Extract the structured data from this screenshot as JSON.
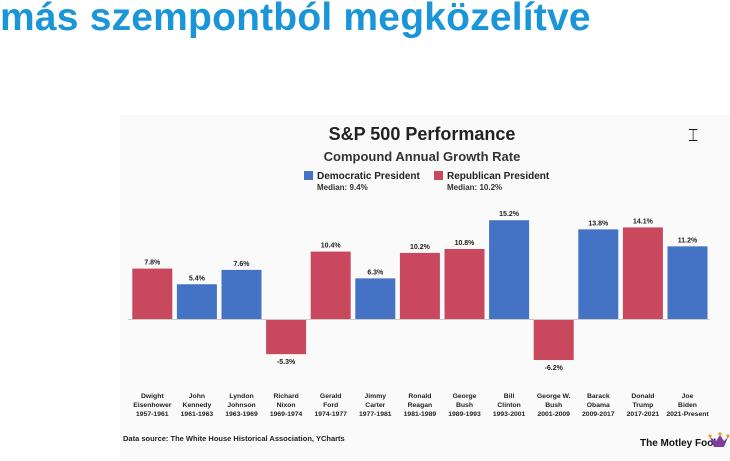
{
  "slide": {
    "heading": "más szempontból megközelítve"
  },
  "chart_data": {
    "type": "bar",
    "title": "S&P 500 Performance",
    "subtitle": "Compound Annual Growth Rate",
    "legend": [
      {
        "name": "Democratic President",
        "median": "Median: 9.4%",
        "color": "#4472c4"
      },
      {
        "name": "Republican President",
        "median": "Median: 10.2%",
        "color": "#c9485e"
      }
    ],
    "categories": [
      {
        "name": "Dwight Eisenhower",
        "line1": "Dwight",
        "line2": "Eisenhower",
        "years": "1957-1961",
        "value": 7.8,
        "label": "7.8%",
        "party": "R"
      },
      {
        "name": "John Kennedy",
        "line1": "John",
        "line2": "Kennedy",
        "years": "1961-1963",
        "value": 5.4,
        "label": "5.4%",
        "party": "D"
      },
      {
        "name": "Lyndon Johnson",
        "line1": "Lyndon",
        "line2": "Johnson",
        "years": "1963-1969",
        "value": 7.6,
        "label": "7.6%",
        "party": "D"
      },
      {
        "name": "Richard Nixon",
        "line1": "Richard",
        "line2": "Nixon",
        "years": "1969-1974",
        "value": -5.3,
        "label": "-5.3%",
        "party": "R"
      },
      {
        "name": "Gerald Ford",
        "line1": "Gerald",
        "line2": "Ford",
        "years": "1974-1977",
        "value": 10.4,
        "label": "10.4%",
        "party": "R"
      },
      {
        "name": "Jimmy Carter",
        "line1": "Jimmy",
        "line2": "Carter",
        "years": "1977-1981",
        "value": 6.3,
        "label": "6.3%",
        "party": "D"
      },
      {
        "name": "Ronald Reagan",
        "line1": "Ronald",
        "line2": "Reagan",
        "years": "1981-1989",
        "value": 10.2,
        "label": "10.2%",
        "party": "R"
      },
      {
        "name": "George Bush",
        "line1": "George",
        "line2": "Bush",
        "years": "1989-1993",
        "value": 10.8,
        "label": "10.8%",
        "party": "R"
      },
      {
        "name": "Bill Clinton",
        "line1": "Bill",
        "line2": "Clinton",
        "years": "1993-2001",
        "value": 15.2,
        "label": "15.2%",
        "party": "D"
      },
      {
        "name": "George W. Bush",
        "line1": "George W.",
        "line2": "Bush",
        "years": "2001-2009",
        "value": -6.2,
        "label": "-6.2%",
        "party": "R"
      },
      {
        "name": "Barack Obama",
        "line1": "Barack",
        "line2": "Obama",
        "years": "2009-2017",
        "value": 13.8,
        "label": "13.8%",
        "party": "D"
      },
      {
        "name": "Donald Trump",
        "line1": "Donald",
        "line2": "Trump",
        "years": "2017-2021",
        "value": 14.1,
        "label": "14.1%",
        "party": "R"
      },
      {
        "name": "Joe Biden",
        "line1": "Joe",
        "line2": "Biden",
        "years": "2021-Present",
        "value": 11.2,
        "label": "11.2%",
        "party": "D"
      }
    ],
    "ylim": [
      -6.5,
      16
    ],
    "grid": false,
    "legend_position": "top",
    "source": "Data source: The White House Historical Association, YCharts",
    "brand": "The Motley Fool",
    "colors": {
      "D": "#4472c4",
      "R": "#c9485e"
    }
  }
}
